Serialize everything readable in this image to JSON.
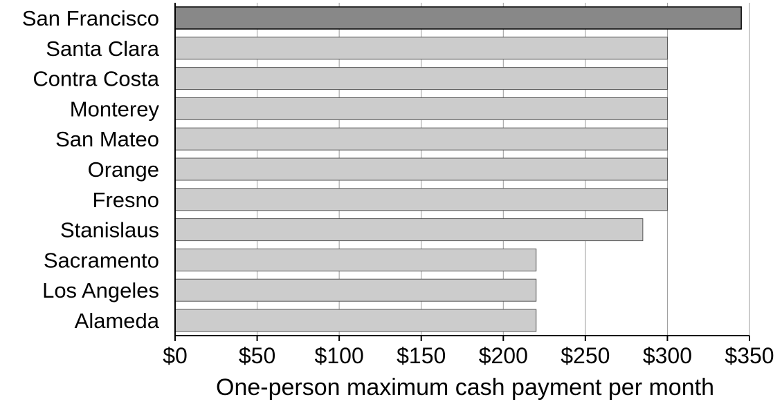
{
  "chart_data": {
    "type": "bar",
    "orientation": "horizontal",
    "categories": [
      "San Francisco",
      "Santa Clara",
      "Contra Costa",
      "Monterey",
      "San Mateo",
      "Orange",
      "Fresno",
      "Stanislaus",
      "Sacramento",
      "Los Angeles",
      "Alameda"
    ],
    "values": [
      345,
      300,
      300,
      300,
      300,
      300,
      300,
      285,
      220,
      220,
      220
    ],
    "highlight_index": 0,
    "xlabel": "One-person maximum cash payment per month",
    "ylabel": "",
    "xlim": [
      0,
      350
    ],
    "x_ticks": [
      {
        "value": 0,
        "label": "$0"
      },
      {
        "value": 50,
        "label": "$50"
      },
      {
        "value": 100,
        "label": "$100"
      },
      {
        "value": 150,
        "label": "$150"
      },
      {
        "value": 200,
        "label": "$200"
      },
      {
        "value": 250,
        "label": "$250"
      },
      {
        "value": 300,
        "label": "$300"
      },
      {
        "value": 350,
        "label": "$350"
      }
    ],
    "grid": "vertical",
    "colors": {
      "bar": "#cccccc",
      "highlight_bar": "#888888",
      "bar_stroke": "#555555",
      "highlight_stroke": "#000000",
      "grid": "#999999",
      "axis": "#000000"
    }
  }
}
